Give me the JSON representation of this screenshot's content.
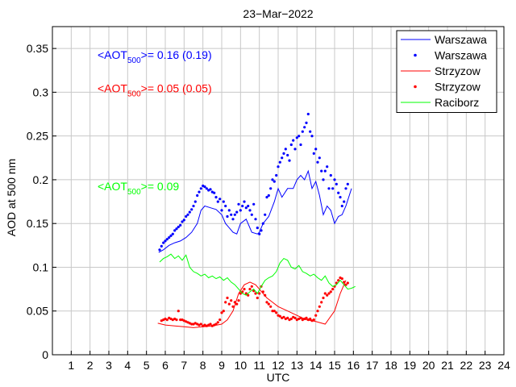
{
  "chart_data": {
    "type": "line",
    "title": "23−Mar−2022",
    "xlabel": "UTC",
    "ylabel": "AOD at 500 nm",
    "xlim": [
      0,
      24
    ],
    "ylim": [
      0,
      0.375
    ],
    "xticks": [
      1,
      2,
      3,
      4,
      5,
      6,
      7,
      8,
      9,
      10,
      11,
      12,
      13,
      14,
      15,
      16,
      17,
      18,
      19,
      20,
      21,
      22,
      23,
      24
    ],
    "xtick_labels": [
      "1",
      "2",
      "3",
      "4",
      "5",
      "6",
      "7",
      "8",
      "9",
      "10",
      "11",
      "12",
      "13",
      "14",
      "15",
      "16",
      "17",
      "18",
      "19",
      "20",
      "21",
      "22",
      "23",
      "24"
    ],
    "yticks": [
      0,
      0.05,
      0.1,
      0.15,
      0.2,
      0.25,
      0.3,
      0.35
    ],
    "ytick_labels": [
      "0",
      "0.05",
      "0.1",
      "0.15",
      "0.2",
      "0.25",
      "0.3",
      "0.35"
    ],
    "grid": true,
    "legend_position": "top-right",
    "annotations": [
      {
        "prefix": "<AOT",
        "sub": "500",
        "suffix": ">= 0.16 (0.19)",
        "color": "#0000ff",
        "x": 2.4,
        "y": 0.338
      },
      {
        "prefix": "<AOT",
        "sub": "500",
        "suffix": ">= 0.05 (0.05)",
        "color": "#ff0000",
        "x": 2.4,
        "y": 0.3
      },
      {
        "prefix": "<AOT",
        "sub": "500",
        "suffix": ">= 0.09",
        "color": "#00ff00",
        "x": 2.4,
        "y": 0.188
      }
    ],
    "series": [
      {
        "name": "Warszawa",
        "style": "line",
        "color": "#0000ff",
        "x": [
          5.65,
          5.9,
          6.2,
          6.5,
          6.8,
          7.1,
          7.4,
          7.7,
          7.9,
          8.1,
          8.4,
          8.7,
          9.0,
          9.2,
          9.4,
          9.6,
          9.8,
          10.0,
          10.3,
          10.6,
          10.9,
          11.0,
          11.2,
          11.5,
          11.8,
          12.0,
          12.2,
          12.5,
          12.8,
          13.0,
          13.2,
          13.4,
          13.6,
          13.8,
          14.0,
          14.2,
          14.4,
          14.6,
          14.8,
          15.0,
          15.2,
          15.4,
          15.6,
          15.9
        ],
        "y": [
          0.117,
          0.12,
          0.125,
          0.128,
          0.13,
          0.134,
          0.14,
          0.15,
          0.165,
          0.17,
          0.168,
          0.166,
          0.16,
          0.15,
          0.145,
          0.14,
          0.138,
          0.15,
          0.155,
          0.14,
          0.138,
          0.14,
          0.15,
          0.158,
          0.175,
          0.19,
          0.18,
          0.19,
          0.19,
          0.2,
          0.205,
          0.2,
          0.21,
          0.19,
          0.198,
          0.182,
          0.16,
          0.17,
          0.165,
          0.15,
          0.158,
          0.16,
          0.17,
          0.19
        ]
      },
      {
        "name": "Warszawa",
        "style": "points",
        "color": "#0000ff",
        "x": [
          5.7,
          5.8,
          5.9,
          6.0,
          6.1,
          6.2,
          6.3,
          6.4,
          6.5,
          6.6,
          6.7,
          6.8,
          6.9,
          7.0,
          7.1,
          7.2,
          7.3,
          7.4,
          7.5,
          7.6,
          7.7,
          7.8,
          7.9,
          8.0,
          8.1,
          8.2,
          8.3,
          8.4,
          8.5,
          8.6,
          8.7,
          8.8,
          8.9,
          9.0,
          9.1,
          9.2,
          9.3,
          9.4,
          9.5,
          9.6,
          9.7,
          9.8,
          9.9,
          10.0,
          10.1,
          10.2,
          10.3,
          10.4,
          10.5,
          10.6,
          10.7,
          10.8,
          10.9,
          11.0,
          11.1,
          11.2,
          11.3,
          11.4,
          11.5,
          11.6,
          11.7,
          11.8,
          11.9,
          12.0,
          12.1,
          12.2,
          12.3,
          12.4,
          12.5,
          12.6,
          12.7,
          12.8,
          12.9,
          13.0,
          13.1,
          13.2,
          13.3,
          13.4,
          13.5,
          13.6,
          13.7,
          13.8,
          13.9,
          14.0,
          14.1,
          14.2,
          14.3,
          14.4,
          14.5,
          14.6,
          14.7,
          14.8,
          14.9,
          15.0,
          15.1,
          15.2,
          15.3,
          15.4,
          15.5,
          15.6,
          15.7
        ],
        "y": [
          0.12,
          0.124,
          0.128,
          0.13,
          0.132,
          0.134,
          0.136,
          0.138,
          0.142,
          0.144,
          0.146,
          0.148,
          0.152,
          0.154,
          0.158,
          0.16,
          0.163,
          0.166,
          0.17,
          0.175,
          0.182,
          0.186,
          0.19,
          0.193,
          0.192,
          0.19,
          0.188,
          0.189,
          0.186,
          0.185,
          0.18,
          0.175,
          0.178,
          0.165,
          0.175,
          0.17,
          0.158,
          0.165,
          0.16,
          0.155,
          0.16,
          0.163,
          0.172,
          0.165,
          0.17,
          0.175,
          0.168,
          0.17,
          0.165,
          0.16,
          0.172,
          0.155,
          0.145,
          0.138,
          0.142,
          0.15,
          0.16,
          0.18,
          0.182,
          0.19,
          0.2,
          0.198,
          0.205,
          0.215,
          0.22,
          0.225,
          0.23,
          0.235,
          0.228,
          0.222,
          0.24,
          0.245,
          0.235,
          0.248,
          0.25,
          0.24,
          0.255,
          0.26,
          0.265,
          0.275,
          0.255,
          0.25,
          0.23,
          0.235,
          0.22,
          0.225,
          0.21,
          0.2,
          0.21,
          0.215,
          0.19,
          0.205,
          0.19,
          0.2,
          0.195,
          0.185,
          0.18,
          0.17,
          0.175,
          0.19,
          0.195
        ]
      },
      {
        "name": "Strzyzow",
        "style": "line",
        "color": "#ff0000",
        "x": [
          5.6,
          6.0,
          6.5,
          7.0,
          7.5,
          8.0,
          8.5,
          9.0,
          9.3,
          9.6,
          9.9,
          10.2,
          10.5,
          10.8,
          11.0,
          11.2,
          11.4,
          11.7,
          12.0,
          12.5,
          13.0,
          13.5,
          14.0,
          14.5,
          15.0,
          15.3,
          15.6
        ],
        "y": [
          0.036,
          0.034,
          0.033,
          0.032,
          0.031,
          0.032,
          0.033,
          0.035,
          0.04,
          0.05,
          0.07,
          0.08,
          0.083,
          0.08,
          0.075,
          0.07,
          0.065,
          0.06,
          0.055,
          0.05,
          0.045,
          0.04,
          0.038,
          0.035,
          0.05,
          0.07,
          0.085
        ]
      },
      {
        "name": "Strzyzow",
        "style": "points",
        "color": "#ff0000",
        "x": [
          5.8,
          5.9,
          6.0,
          6.1,
          6.2,
          6.3,
          6.4,
          6.5,
          6.6,
          6.7,
          6.8,
          6.9,
          7.0,
          7.1,
          7.2,
          7.3,
          7.4,
          7.5,
          7.6,
          7.7,
          7.8,
          7.9,
          8.0,
          8.1,
          8.2,
          8.3,
          8.4,
          8.5,
          8.6,
          8.7,
          8.8,
          8.9,
          9.0,
          9.1,
          9.2,
          9.3,
          9.4,
          9.5,
          9.6,
          9.7,
          9.8,
          9.9,
          10.0,
          10.1,
          10.2,
          10.3,
          10.4,
          10.5,
          10.6,
          10.7,
          10.8,
          10.9,
          11.0,
          11.1,
          11.2,
          11.3,
          11.4,
          11.5,
          11.6,
          11.7,
          11.8,
          11.9,
          12.0,
          12.1,
          12.2,
          12.3,
          12.4,
          12.5,
          12.6,
          12.7,
          12.8,
          12.9,
          13.0,
          13.1,
          13.2,
          13.3,
          13.4,
          13.5,
          13.6,
          13.7,
          13.8,
          13.9,
          14.0,
          14.1,
          14.2,
          14.3,
          14.4,
          14.5,
          14.6,
          14.7,
          14.8,
          14.9,
          15.0,
          15.1,
          15.2,
          15.3,
          15.4,
          15.5,
          15.6,
          15.7
        ],
        "y": [
          0.039,
          0.04,
          0.041,
          0.04,
          0.042,
          0.041,
          0.04,
          0.041,
          0.04,
          0.05,
          0.04,
          0.04,
          0.039,
          0.038,
          0.037,
          0.036,
          0.035,
          0.035,
          0.036,
          0.035,
          0.034,
          0.035,
          0.033,
          0.034,
          0.033,
          0.034,
          0.035,
          0.033,
          0.034,
          0.035,
          0.037,
          0.04,
          0.048,
          0.05,
          0.06,
          0.065,
          0.058,
          0.062,
          0.055,
          0.06,
          0.058,
          0.062,
          0.07,
          0.072,
          0.075,
          0.07,
          0.068,
          0.075,
          0.078,
          0.073,
          0.07,
          0.065,
          0.07,
          0.078,
          0.072,
          0.068,
          0.06,
          0.058,
          0.055,
          0.05,
          0.05,
          0.048,
          0.045,
          0.044,
          0.042,
          0.043,
          0.041,
          0.042,
          0.04,
          0.041,
          0.043,
          0.042,
          0.04,
          0.041,
          0.042,
          0.04,
          0.041,
          0.042,
          0.04,
          0.041,
          0.039,
          0.04,
          0.045,
          0.05,
          0.055,
          0.06,
          0.065,
          0.07,
          0.068,
          0.07,
          0.072,
          0.075,
          0.078,
          0.082,
          0.085,
          0.088,
          0.087,
          0.083,
          0.08,
          0.082
        ]
      },
      {
        "name": "Raciborz",
        "style": "line",
        "color": "#00ff00",
        "x": [
          5.7,
          5.9,
          6.1,
          6.3,
          6.5,
          6.7,
          6.9,
          7.1,
          7.3,
          7.5,
          7.7,
          7.9,
          8.1,
          8.3,
          8.5,
          8.7,
          8.9,
          9.1,
          9.3,
          9.5,
          9.7,
          9.9,
          10.1,
          10.3,
          10.5,
          10.7,
          10.9,
          11.1,
          11.3,
          11.5,
          11.7,
          11.9,
          12.1,
          12.3,
          12.5,
          12.7,
          12.9,
          13.1,
          13.3,
          13.5,
          13.7,
          13.9,
          14.1,
          14.3,
          14.5,
          14.7,
          14.9,
          15.1,
          15.3,
          15.5,
          15.7,
          15.9,
          16.1
        ],
        "y": [
          0.106,
          0.11,
          0.112,
          0.115,
          0.11,
          0.113,
          0.108,
          0.114,
          0.1,
          0.095,
          0.093,
          0.09,
          0.092,
          0.088,
          0.09,
          0.087,
          0.089,
          0.085,
          0.088,
          0.083,
          0.08,
          0.075,
          0.07,
          0.068,
          0.072,
          0.075,
          0.07,
          0.078,
          0.085,
          0.088,
          0.09,
          0.095,
          0.105,
          0.11,
          0.108,
          0.1,
          0.098,
          0.102,
          0.095,
          0.093,
          0.09,
          0.092,
          0.088,
          0.085,
          0.09,
          0.082,
          0.078,
          0.08,
          0.085,
          0.08,
          0.075,
          0.076,
          0.078
        ]
      }
    ]
  }
}
